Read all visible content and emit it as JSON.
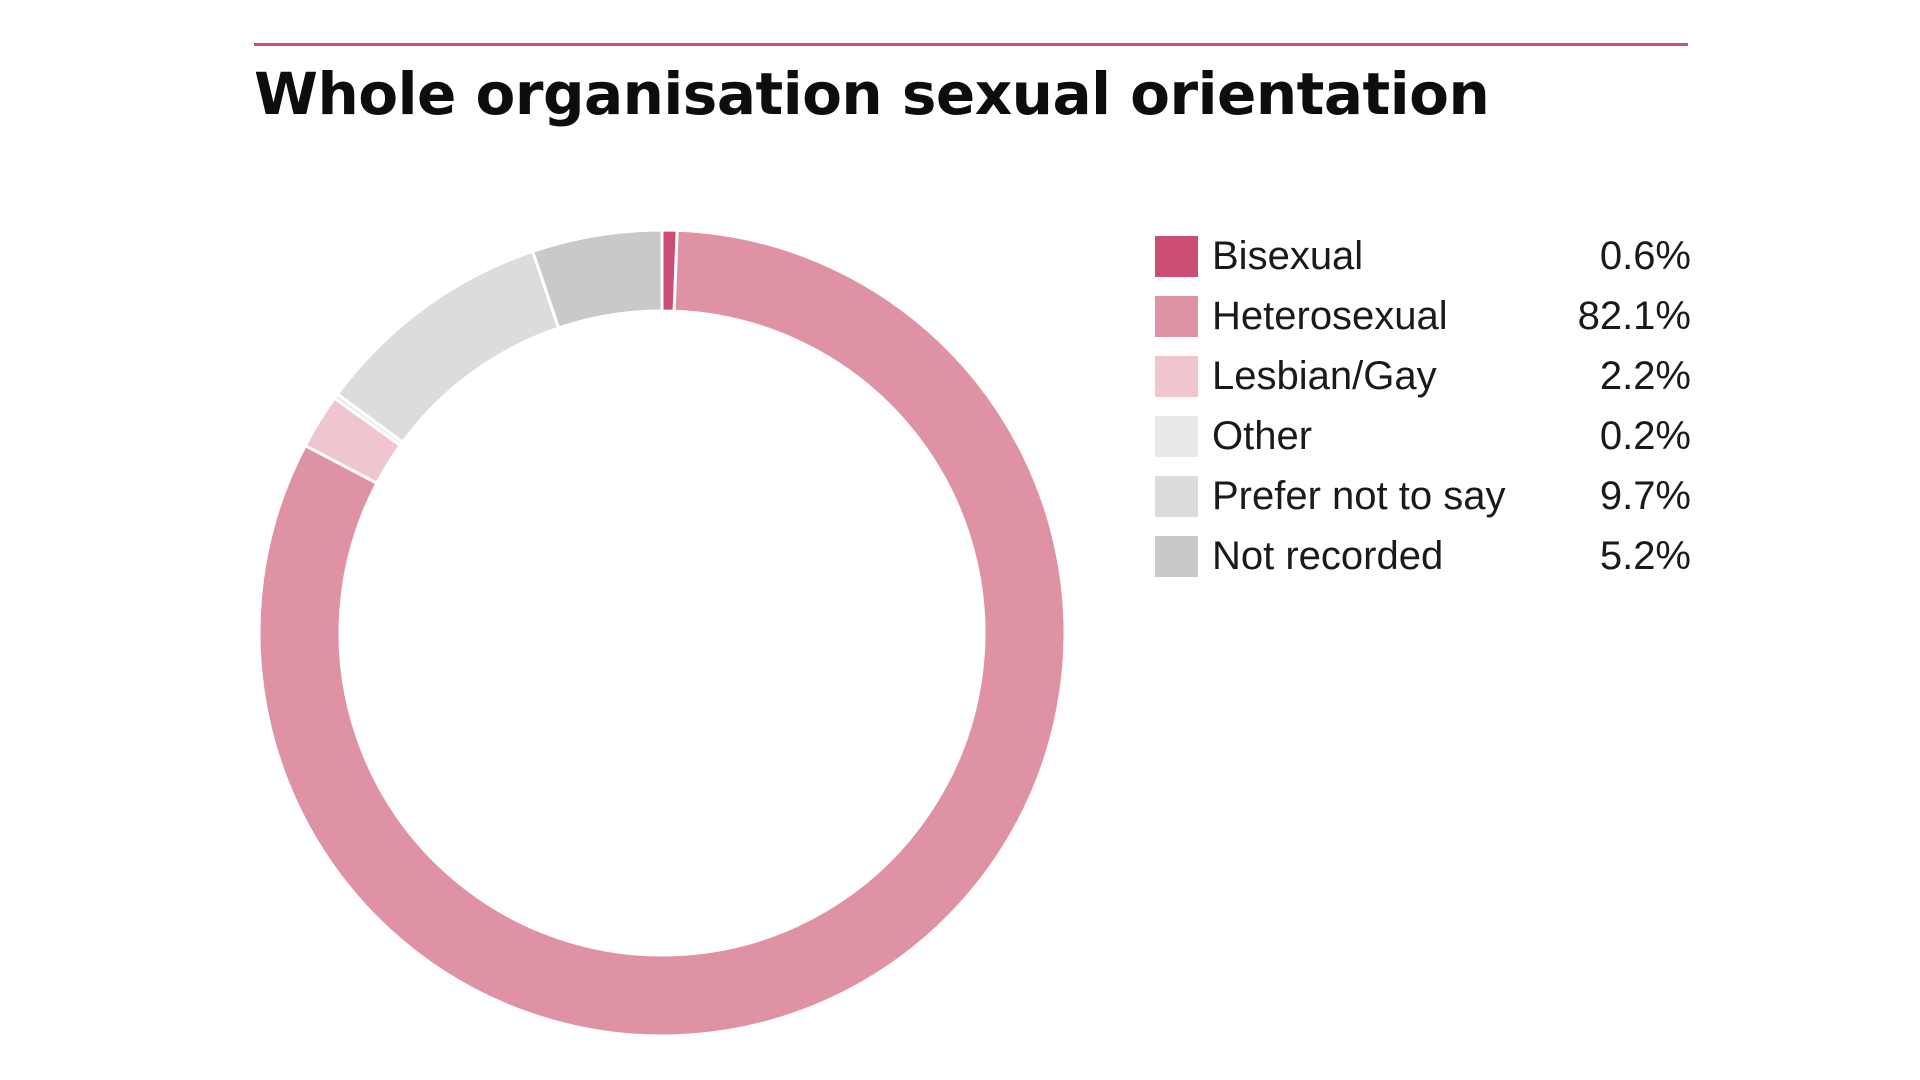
{
  "title": "Whole organisation sexual orientation",
  "accent_color": "#d0506f",
  "chart_data": {
    "type": "pie",
    "variant": "donut",
    "title": "Whole organisation sexual orientation",
    "start": "top",
    "direction": "clockwise",
    "legend_position": "right",
    "series": [
      {
        "name": "Bisexual",
        "value": 0.6,
        "label": "0.6%",
        "color": "#cc4d73"
      },
      {
        "name": "Heterosexual",
        "value": 82.1,
        "label": "82.1%",
        "color": "#df92a4"
      },
      {
        "name": "Lesbian/Gay",
        "value": 2.2,
        "label": "2.2%",
        "color": "#efc5cf"
      },
      {
        "name": "Other",
        "value": 0.2,
        "label": "0.2%",
        "color": "#e9e9e9"
      },
      {
        "name": "Prefer not to say",
        "value": 9.7,
        "label": "9.7%",
        "color": "#dcdcdc"
      },
      {
        "name": "Not recorded",
        "value": 5.2,
        "label": "5.2%",
        "color": "#c9c9c9"
      }
    ]
  }
}
